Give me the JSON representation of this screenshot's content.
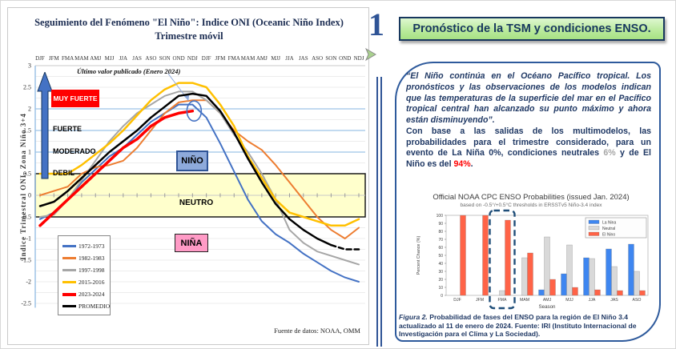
{
  "left_chart": {
    "title_line1": "Seguimiento del Fenómeno \"El Niño\": Indice ONI (Oceanic Niño Index)",
    "title_line2": "Trimestre móvil",
    "ylabel": "Indice Trimestral ONI, Zona Niño 3+4",
    "annotation": "Último valor publicado  (Enero 2024)",
    "source": "Fuente de datos: NOAA, OMM",
    "zone_labels": {
      "muy_fuerte": "MUY FUERTE",
      "fuerte": "FUERTE",
      "moderado": "MODERADO",
      "debil": "DEBIL",
      "nino": "NIÑO",
      "neutro": "NEUTRO",
      "nina": "NIÑA"
    },
    "colors": {
      "muy_fuerte_box": "#ff0000",
      "nino_box": "#8eaadb",
      "nina_box": "#ff9bc6",
      "neutro_band": "#ffffcc",
      "arrow": "#4472c4"
    }
  },
  "divider": {
    "number_label": "1"
  },
  "right_panel": {
    "header": "Pronóstico de la TSM y condiciones ENSO.",
    "quote": "“El Niño continúa en el Océano Pacífico tropical. Los pronósticos y las observaciones de los modelos indican que las temperaturas de la superficie del mar en el Pacífico tropical central han alcanzado su punto máximo y ahora están disminuyendo”.",
    "body_1": "Con base a las salidas de los multimodelos, las probabilidades para el trimestre considerado, para un evento de La Niña ",
    "nina_pct": "0%,",
    "nina_color": "#1f3864",
    "body_2": " condiciones neutrales ",
    "neutral_pct": "6%",
    "neutral_color": "#a6a6a6",
    "body_3": " y de  El Niño es del ",
    "nino_pct": "94%",
    "nino_color": "#ff0000",
    "body_end": ".",
    "caption_label": "Figura 2.",
    "caption_text": " Probabilidad de fases del ENSO para la región de El Niño 3.4 actualizado al 11 de enero de 2024. Fuente: IRI (Instituto Internacional de Investigación para el Clima y La Sociedad)."
  },
  "chart_data": [
    {
      "type": "line",
      "title": "Seguimiento del Fenómeno \"El Niño\": Indice ONI (Oceanic Niño Index) — Trimestre móvil",
      "x": [
        "DJF",
        "JFM",
        "FMA",
        "MAM",
        "AMJ",
        "MJJ",
        "JJA",
        "JAS",
        "ASO",
        "SON",
        "OND",
        "NDJ",
        "DJF",
        "JFM",
        "FMA",
        "MAM",
        "AMJ",
        "MJJ",
        "JJA",
        "JAS",
        "ASO",
        "SON",
        "OND",
        "NDJ"
      ],
      "ylabel": "Indice Trimestral ONI, Zona Niño 3+4",
      "ylim": [
        -2.7,
        3
      ],
      "yticks": [
        3,
        2.5,
        2,
        1.5,
        1,
        0.5,
        0,
        -0.5,
        -1,
        -1.5,
        -2,
        -2.5
      ],
      "neutral_band": [
        -0.5,
        0.5
      ],
      "grid": true,
      "legend_position": "bottom-left",
      "series": [
        {
          "name": "1972-1973",
          "color": "#4472c4",
          "width": 2,
          "values": [
            -0.55,
            -0.4,
            -0.1,
            0.3,
            0.6,
            0.9,
            1.1,
            1.4,
            1.7,
            1.9,
            2.1,
            2.1,
            1.8,
            1.2,
            0.55,
            -0.1,
            -0.6,
            -0.9,
            -1.1,
            -1.35,
            -1.55,
            -1.75,
            -1.9,
            -2.0
          ]
        },
        {
          "name": "1982-1983",
          "color": "#ed7d31",
          "width": 2,
          "values": [
            0.0,
            0.1,
            0.2,
            0.5,
            0.65,
            0.7,
            0.8,
            1.1,
            1.5,
            1.9,
            2.15,
            2.2,
            2.2,
            1.9,
            1.5,
            1.25,
            1.05,
            0.7,
            0.3,
            -0.1,
            -0.5,
            -0.8,
            -1.0,
            -0.75
          ]
        },
        {
          "name": "1997-1998",
          "color": "#a6a6a6",
          "width": 2,
          "values": [
            -0.5,
            -0.45,
            -0.1,
            0.35,
            0.8,
            1.25,
            1.6,
            1.9,
            2.1,
            2.3,
            2.4,
            2.4,
            2.2,
            1.9,
            1.4,
            1.0,
            0.5,
            -0.1,
            -0.8,
            -1.1,
            -1.3,
            -1.4,
            -1.5,
            -1.6
          ]
        },
        {
          "name": "2015-2016",
          "color": "#ffc000",
          "width": 2.5,
          "values": [
            0.5,
            0.5,
            0.5,
            0.7,
            0.95,
            1.2,
            1.5,
            1.85,
            2.2,
            2.45,
            2.6,
            2.6,
            2.5,
            2.1,
            1.6,
            0.9,
            0.4,
            -0.1,
            -0.4,
            -0.5,
            -0.6,
            -0.7,
            -0.7,
            -0.55
          ]
        },
        {
          "name": "2023-2024",
          "color": "#ff0000",
          "width": 3.5,
          "marker_end": true,
          "values": [
            -0.7,
            -0.4,
            -0.1,
            0.2,
            0.5,
            0.8,
            1.1,
            1.3,
            1.6,
            1.8,
            1.9,
            1.95
          ]
        },
        {
          "name": "PROMEDIO",
          "color": "#000000",
          "width": 2.5,
          "dash_from": 21,
          "values": [
            -0.25,
            -0.15,
            0.1,
            0.4,
            0.7,
            1.0,
            1.25,
            1.5,
            1.8,
            2.05,
            2.3,
            2.35,
            2.3,
            1.95,
            1.45,
            0.85,
            0.3,
            -0.2,
            -0.55,
            -0.8,
            -1.0,
            -1.15,
            -1.25,
            -1.25
          ]
        }
      ]
    },
    {
      "type": "bar",
      "title": "Official NOAA CPC ENSO Probabilities (issued Jan. 2024)",
      "subtitle": "based on -0.5°/+0.5°C thresholds in ERSSTv5 Niño-3.4 index",
      "categories": [
        "DJF",
        "JFM",
        "FMA",
        "MAM",
        "AMJ",
        "MJJ",
        "JJA",
        "JAS",
        "ASO"
      ],
      "xlabel": "Season",
      "ylabel": "Percent Chance (%)",
      "ylim": [
        0,
        100
      ],
      "yticks": [
        0,
        10,
        20,
        30,
        40,
        50,
        60,
        70,
        80,
        90,
        100
      ],
      "legend_position": "top-right",
      "highlight_category": "FMA",
      "series": [
        {
          "name": "La Nina",
          "color": "#3e86f0",
          "values": [
            0,
            0,
            0,
            0,
            7,
            27,
            47,
            58,
            64
          ]
        },
        {
          "name": "Neutral",
          "color": "#d9d9d9",
          "values": [
            0,
            0,
            6,
            47,
            73,
            63,
            46,
            36,
            30
          ]
        },
        {
          "name": "El Nino",
          "color": "#ff6347",
          "values": [
            100,
            100,
            94,
            53,
            20,
            10,
            7,
            6,
            6
          ]
        }
      ]
    }
  ]
}
